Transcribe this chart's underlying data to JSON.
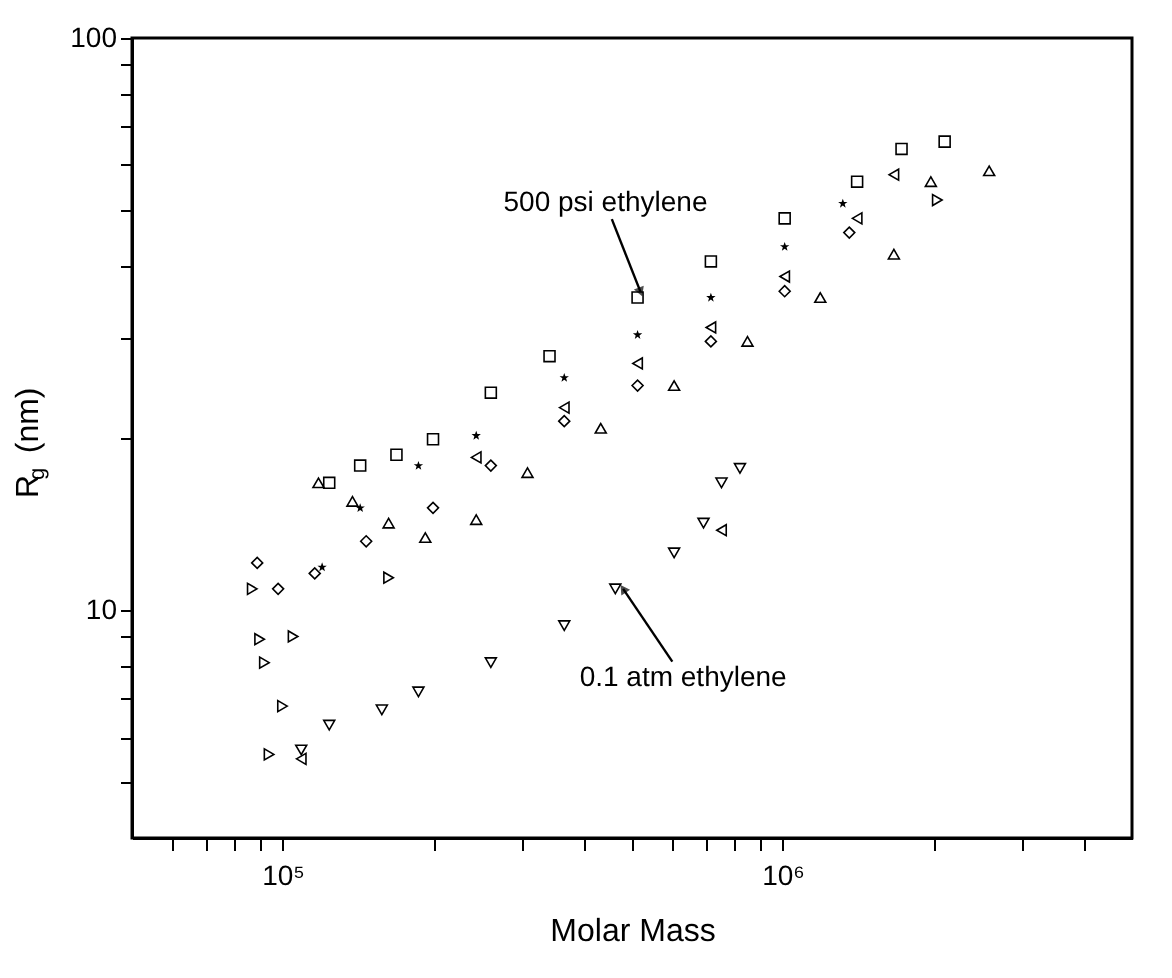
{
  "chart_data": {
    "type": "scatter",
    "xlabel": "Molar Mass",
    "ylabel": "R$_{g}$ (nm)",
    "log": "xy",
    "grid": false,
    "xlim": [
      50000,
      5000000
    ],
    "ylim": [
      4,
      100
    ],
    "xticks": [
      {
        "value": 60000,
        "label": null
      },
      {
        "value": 70000,
        "label": null
      },
      {
        "value": 80000,
        "label": null
      },
      {
        "value": 90000,
        "label": null
      },
      {
        "value": 100000,
        "label": "10⁵"
      },
      {
        "value": 200000,
        "label": null
      },
      {
        "value": 300000,
        "label": null
      },
      {
        "value": 400000,
        "label": null
      },
      {
        "value": 500000,
        "label": null
      },
      {
        "value": 600000,
        "label": null
      },
      {
        "value": 700000,
        "label": null
      },
      {
        "value": 800000,
        "label": null
      },
      {
        "value": 900000,
        "label": null
      },
      {
        "value": 1000000,
        "label": "10⁶"
      },
      {
        "value": 2000000,
        "label": null
      },
      {
        "value": 3000000,
        "label": null
      },
      {
        "value": 4000000,
        "label": null
      }
    ],
    "yticks": [
      {
        "value": 5,
        "label": null
      },
      {
        "value": 6,
        "label": null
      },
      {
        "value": 7,
        "label": null
      },
      {
        "value": 8,
        "label": null
      },
      {
        "value": 9,
        "label": null
      },
      10,
      {
        "value": 20,
        "label": null
      },
      {
        "value": 30,
        "label": null
      },
      {
        "value": 40,
        "label": null
      },
      {
        "value": 50,
        "label": null
      },
      {
        "value": 60,
        "label": null
      },
      {
        "value": 70,
        "label": null
      },
      {
        "value": 80,
        "label": null
      },
      {
        "value": 90,
        "label": null
      },
      100
    ],
    "series": [
      {
        "marker": "square",
        "color": "#000000",
        "x": [
          124000,
          143000,
          169000,
          200000,
          261000,
          342000,
          513000,
          719000,
          1010000,
          1410000,
          1730000,
          2110000
        ],
        "values": [
          16.7,
          17.9,
          18.7,
          19.9,
          24.0,
          27.8,
          35.2,
          40.7,
          48.4,
          56.1,
          64.0,
          65.9
        ]
      },
      {
        "marker": "star",
        "color": "#000000",
        "x": [
          120000,
          143000,
          187000,
          244000,
          366000,
          513000,
          719000,
          1010000,
          1320000
        ],
        "values": [
          11.9,
          15.1,
          17.9,
          20.2,
          25.5,
          30.3,
          35.2,
          43.2,
          51.4
        ]
      },
      {
        "marker": "triangle-left",
        "color": "#000000",
        "x": [
          244000,
          366000,
          513000,
          719000,
          1010000,
          1410000,
          1670000
        ],
        "values": [
          18.5,
          22.6,
          27.0,
          31.2,
          38.3,
          48.4,
          57.7
        ]
      },
      {
        "marker": "diamond",
        "color": "#000000",
        "x": [
          89000,
          98000,
          116000,
          147000,
          200000,
          261000,
          366000,
          513000,
          719000,
          1010000,
          1360000
        ],
        "values": [
          12.1,
          10.9,
          11.6,
          13.2,
          15.1,
          17.9,
          21.4,
          24.7,
          29.5,
          36.1,
          45.7
        ]
      },
      {
        "marker": "triangle-up",
        "color": "#000000",
        "x": [
          118000,
          138000,
          163000,
          193000,
          244000,
          309000,
          433000,
          607000,
          851000,
          1190000,
          1670000,
          1980000,
          2590000
        ],
        "values": [
          16.7,
          15.5,
          14.2,
          13.4,
          14.4,
          17.4,
          20.8,
          24.7,
          29.5,
          35.2,
          41.9,
          56.1,
          58.6
        ]
      },
      {
        "marker": "triangle-right",
        "color": "#000000",
        "x": [
          87000,
          90000,
          92000,
          100000,
          94000,
          105000,
          163000,
          2040000
        ],
        "values": [
          10.9,
          8.9,
          8.1,
          6.8,
          5.6,
          9.0,
          11.4,
          52.1
        ]
      },
      {
        "marker": "triangle-down",
        "color": "#000000",
        "x": [
          109000,
          124000,
          158000,
          187000,
          261000,
          366000,
          463000,
          607000,
          695000,
          755000,
          822000
        ],
        "values": [
          5.7,
          6.3,
          6.7,
          7.2,
          8.1,
          9.4,
          10.9,
          12.6,
          14.2,
          16.7,
          17.7
        ]
      },
      {
        "marker": "triangle-left",
        "color": "#000000",
        "x": [
          109000,
          755000
        ],
        "values": [
          5.5,
          13.8
        ]
      }
    ],
    "annotations": [
      {
        "text": "500 psi ethylene",
        "x": 520000,
        "y": 36
      },
      {
        "text": "0.1 atm ethylene",
        "x": 480000,
        "y": 10.9
      }
    ]
  }
}
